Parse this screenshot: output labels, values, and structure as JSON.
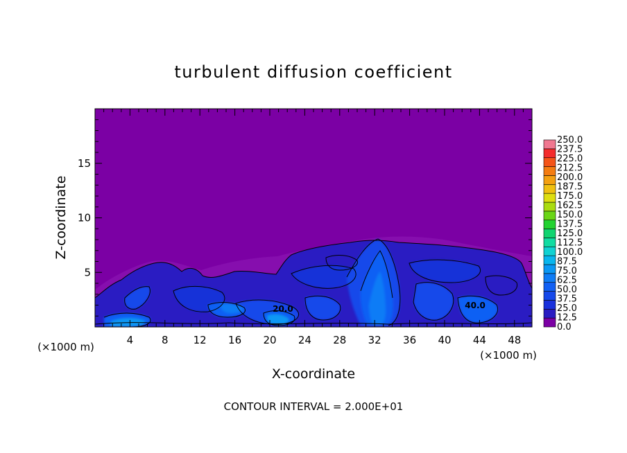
{
  "chart_data": {
    "type": "heatmap",
    "title": "turbulent diffusion coefficient",
    "xlabel": "X-coordinate",
    "ylabel": "Z-coordinate",
    "x_unit_left": "(×1000 m)",
    "x_unit_right": "(×1000 m)",
    "footer": "CONTOUR INTERVAL = 2.000E+01",
    "xlim": [
      0,
      50
    ],
    "ylim": [
      0,
      20
    ],
    "x_ticks": [
      "4",
      "8",
      "12",
      "16",
      "20",
      "24",
      "28",
      "32",
      "36",
      "40",
      "44",
      "48"
    ],
    "x_tick_values": [
      4,
      8,
      12,
      16,
      20,
      24,
      28,
      32,
      36,
      40,
      44,
      48
    ],
    "y_ticks": [
      "5",
      "10",
      "15"
    ],
    "y_tick_values": [
      5,
      10,
      15
    ],
    "contour_labels": [
      {
        "text": "20.0",
        "x": 21.5,
        "z": 1.4
      },
      {
        "text": "40.0",
        "x": 43.5,
        "z": 1.7
      }
    ],
    "colorbar": {
      "levels": [
        "0.0",
        "12.5",
        "25.0",
        "37.5",
        "50.0",
        "62.5",
        "75.0",
        "87.5",
        "100.0",
        "112.5",
        "125.0",
        "137.5",
        "150.0",
        "162.5",
        "175.0",
        "187.5",
        "200.0",
        "212.5",
        "225.0",
        "237.5",
        "250.0"
      ],
      "colors": [
        "#7b00a4",
        "#2a1cc2",
        "#1830dc",
        "#1548ea",
        "#1160f4",
        "#0e7cf6",
        "#0a98f4",
        "#08b6ee",
        "#10d2d2",
        "#10dca2",
        "#10d470",
        "#22d230",
        "#6ad616",
        "#aadc10",
        "#dede10",
        "#f0c010",
        "#f4a010",
        "#f47c10",
        "#f45418",
        "#f42c2c",
        "#f07890"
      ]
    }
  }
}
